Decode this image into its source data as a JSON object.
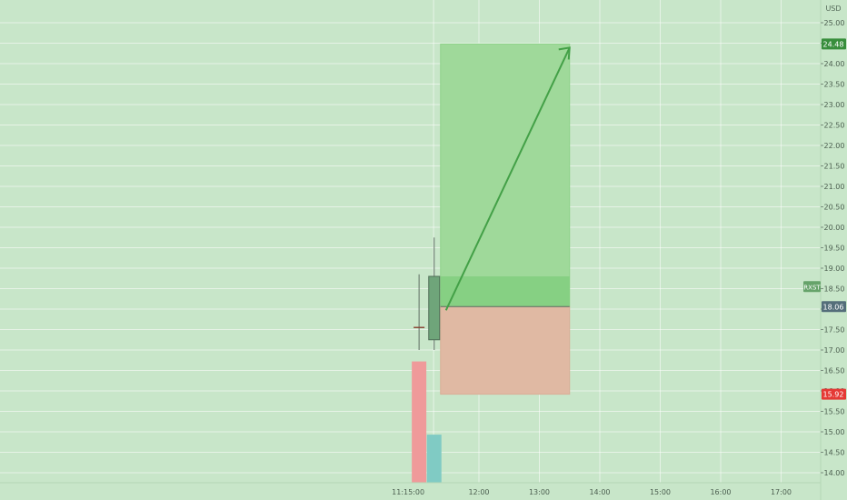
{
  "chart_data": {
    "type": "candlestick",
    "currency": "USD",
    "symbol": "RXST",
    "y_axis": {
      "ticks": [
        25,
        24.5,
        24,
        23.5,
        23,
        22.5,
        22,
        21.5,
        21,
        20.5,
        20,
        19.5,
        19,
        18.5,
        18,
        17.5,
        17,
        16.5,
        16,
        15.5,
        15,
        14.5,
        14
      ],
      "tick_labels": [
        "25.00",
        "24.50",
        "24.00",
        "23.50",
        "23.00",
        "22.50",
        "22.00",
        "21.50",
        "21.00",
        "20.50",
        "20.00",
        "19.50",
        "19.00",
        "18.50",
        "18.00",
        "17.50",
        "17.00",
        "16.50",
        "16.00",
        "15.50",
        "15.00",
        "14.50",
        "14.00"
      ],
      "range": [
        13.85,
        25.45
      ]
    },
    "x_axis": {
      "tick_labels": [
        "11:15:00",
        "12:00",
        "13:00",
        "14:00",
        "15:00",
        "16:00",
        "17:00"
      ],
      "tick_times": [
        "11:15",
        "12:00",
        "13:00",
        "14:00",
        "15:00",
        "16:00",
        "17:00"
      ]
    },
    "candles": [
      {
        "time": "11:15",
        "open": 17.55,
        "high": 18.85,
        "low": 17.0,
        "close": 17.55
      },
      {
        "time": "11:30",
        "open": 17.25,
        "high": 19.75,
        "low": 17.0,
        "close": 18.8
      }
    ],
    "volume_bars": [
      {
        "time": "11:15",
        "direction": "down",
        "level": 0.58,
        "color": "#ef9a9a"
      },
      {
        "time": "11:30",
        "direction": "up",
        "level": 0.23,
        "color": "#80cbc4"
      }
    ],
    "position": {
      "type": "long",
      "start_time": "11:30",
      "end_time": "13:30",
      "entry": 18.06,
      "target": 24.48,
      "stop": 15.92
    },
    "price_labels": [
      {
        "role": "target",
        "text": "24.48",
        "value": 24.48,
        "color": "#388e3c"
      },
      {
        "role": "last",
        "text": "18.06",
        "value": 18.06,
        "color": "#546e7a"
      },
      {
        "role": "stop",
        "text": "15.92",
        "value": 15.92,
        "color": "#e53935"
      }
    ],
    "symbol_tag": {
      "text": "RXST",
      "value": 18.55,
      "color": "#66a36a"
    },
    "colors": {
      "background": "#c8e6c9",
      "grid": "#ffffff",
      "profit_zone": "#9fd99a",
      "loss_zone": "#e0b9a3",
      "arrow": "#43a047",
      "candle_body": "#6fa57a"
    },
    "grid": true
  }
}
